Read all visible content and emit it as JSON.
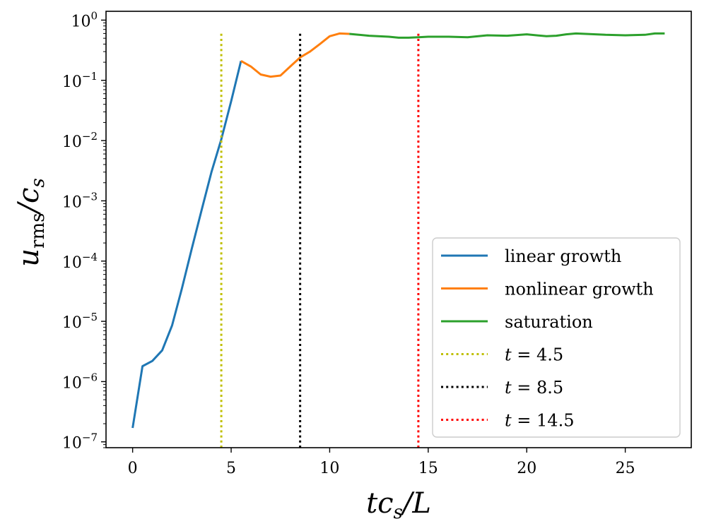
{
  "chart_data": {
    "type": "line",
    "title": "",
    "xlabel": "tc_s/L",
    "ylabel": "u_rms/c_s",
    "xlim": [
      -1.35,
      28.35
    ],
    "ylim": [
      8e-08,
      1.4
    ],
    "yscale": "log",
    "x_ticks": [
      0,
      5,
      10,
      15,
      20,
      25
    ],
    "x_tick_labels": [
      "0",
      "5",
      "10",
      "15",
      "20",
      "25"
    ],
    "y_ticks": [
      1e-07,
      1e-06,
      1e-05,
      0.0001,
      0.001,
      0.01,
      0.1,
      1
    ],
    "y_tick_labels": [
      {
        "base": "10",
        "exp": "−7"
      },
      {
        "base": "10",
        "exp": "−6"
      },
      {
        "base": "10",
        "exp": "−5"
      },
      {
        "base": "10",
        "exp": "−4"
      },
      {
        "base": "10",
        "exp": "−3"
      },
      {
        "base": "10",
        "exp": "−2"
      },
      {
        "base": "10",
        "exp": "−1"
      },
      {
        "base": "10",
        "exp": "0"
      }
    ],
    "grid": false,
    "legend_position": "lower-right",
    "series": [
      {
        "name": "linear growth",
        "color": "#1f77b4",
        "style": "solid",
        "x": [
          0,
          0.5,
          1.0,
          1.5,
          2.0,
          2.5,
          3.0,
          3.5,
          4.0,
          4.5,
          5.0,
          5.5
        ],
        "y": [
          1.7e-07,
          1.8e-06,
          2.2e-06,
          3.3e-06,
          8.5e-06,
          3.5e-05,
          0.00016,
          0.0007,
          0.003,
          0.0105,
          0.045,
          0.21
        ]
      },
      {
        "name": "nonlinear growth",
        "color": "#ff7f0e",
        "style": "solid",
        "x": [
          5.5,
          6.0,
          6.5,
          7.0,
          7.5,
          8.0,
          8.5,
          9.0,
          9.5,
          10.0,
          10.5,
          11.0
        ],
        "y": [
          0.21,
          0.17,
          0.125,
          0.115,
          0.12,
          0.17,
          0.24,
          0.3,
          0.4,
          0.54,
          0.6,
          0.59
        ]
      },
      {
        "name": "saturation",
        "color": "#2ca02c",
        "style": "solid",
        "x": [
          11.0,
          12.0,
          13.0,
          13.5,
          14.0,
          14.5,
          15.0,
          16.0,
          17.0,
          18.0,
          19.0,
          20.0,
          21.0,
          21.5,
          22.0,
          22.5,
          23.0,
          24.0,
          25.0,
          26.0,
          26.5,
          27.0
        ],
        "y": [
          0.59,
          0.55,
          0.53,
          0.51,
          0.51,
          0.52,
          0.53,
          0.53,
          0.52,
          0.56,
          0.55,
          0.58,
          0.54,
          0.55,
          0.58,
          0.6,
          0.59,
          0.57,
          0.56,
          0.57,
          0.6,
          0.6
        ]
      },
      {
        "name": "t = 4.5",
        "color": "#bfbf00",
        "style": "dotted",
        "vline": 4.5,
        "ymin": 8e-08,
        "ymax": 0.6
      },
      {
        "name": "t = 8.5",
        "color": "#000000",
        "style": "dotted",
        "vline": 8.5,
        "ymin": 8e-08,
        "ymax": 0.6
      },
      {
        "name": "t = 14.5",
        "color": "#ff0000",
        "style": "dotted",
        "vline": 14.5,
        "ymin": 8e-08,
        "ymax": 0.6
      }
    ]
  }
}
